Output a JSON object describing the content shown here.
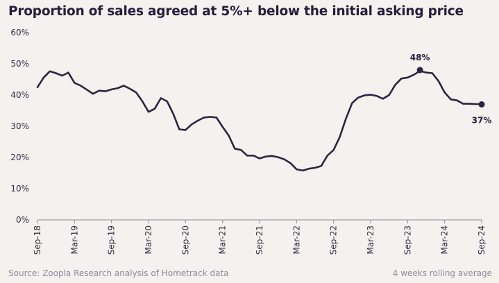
{
  "title": "Proportion of sales agreed at 5%+ below the initial asking price",
  "footer": {
    "source": "Source: Zoopla Research analysis of Hometrack data",
    "note": "4 weeks rolling average"
  },
  "colors": {
    "line": "#2b2440",
    "axis": "#8a8896",
    "background": "#f3f2ee"
  },
  "chart_data": {
    "type": "line",
    "title": "Proportion of sales agreed at 5%+ below the initial asking price",
    "xlabel": "",
    "ylabel": "",
    "ylim": [
      0,
      60
    ],
    "yticks": [
      "0%",
      "10%",
      "20%",
      "30%",
      "40%",
      "50%",
      "60%"
    ],
    "ytick_values": [
      0,
      10,
      20,
      30,
      40,
      50,
      60
    ],
    "xtick_labels": [
      "Sep-18",
      "Mar-19",
      "Sep-19",
      "Mar-20",
      "Sep-20",
      "Mar-21",
      "Sep-21",
      "Mar-22",
      "Sep-22",
      "Mar-23",
      "Sep-23",
      "Mar-24",
      "Sep-24"
    ],
    "grid": false,
    "series": [
      {
        "x": [
          "2018-09",
          "2018-10",
          "2018-11",
          "2018-12",
          "2019-01",
          "2019-02",
          "2019-03",
          "2019-04",
          "2019-05",
          "2019-06",
          "2019-07",
          "2019-08",
          "2019-09",
          "2019-10",
          "2019-11",
          "2019-12",
          "2020-01",
          "2020-02",
          "2020-03",
          "2020-04",
          "2020-05",
          "2020-06",
          "2020-07",
          "2020-08",
          "2020-09",
          "2020-10",
          "2020-11",
          "2020-12",
          "2021-01",
          "2021-02",
          "2021-03",
          "2021-04",
          "2021-05",
          "2021-06",
          "2021-07",
          "2021-08",
          "2021-09",
          "2021-10",
          "2021-11",
          "2021-12",
          "2022-01",
          "2022-02",
          "2022-03",
          "2022-04",
          "2022-05",
          "2022-06",
          "2022-07",
          "2022-08",
          "2022-09",
          "2022-10",
          "2022-11",
          "2022-12",
          "2023-01",
          "2023-02",
          "2023-03",
          "2023-04",
          "2023-05",
          "2023-06",
          "2023-07",
          "2023-08",
          "2023-09",
          "2023-10",
          "2023-11",
          "2023-12",
          "2024-01",
          "2024-02",
          "2024-03",
          "2024-04",
          "2024-05",
          "2024-06",
          "2024-07",
          "2024-08",
          "2024-09"
        ],
        "values": [
          42.5,
          45.6,
          47.6,
          47.0,
          46.2,
          47.2,
          43.9,
          43.0,
          41.7,
          40.4,
          41.4,
          41.2,
          41.8,
          42.2,
          43.0,
          42.0,
          40.8,
          38.0,
          34.6,
          35.6,
          39.0,
          38.0,
          34.0,
          29.0,
          28.8,
          30.6,
          31.8,
          32.8,
          33.0,
          32.8,
          29.8,
          27.0,
          22.8,
          22.4,
          20.6,
          20.6,
          19.7,
          20.3,
          20.5,
          20.1,
          19.4,
          18.2,
          16.2,
          15.8,
          16.4,
          16.7,
          17.3,
          20.6,
          22.4,
          26.6,
          32.4,
          37.4,
          39.2,
          39.9,
          40.1,
          39.7,
          38.8,
          40.0,
          43.3,
          45.3,
          45.6,
          46.5,
          47.7,
          47.2,
          47.0,
          44.5,
          40.8,
          38.6,
          38.3,
          37.2,
          37.2,
          37.1,
          37.0
        ]
      }
    ],
    "annotations": [
      {
        "x": "2023-11",
        "y": 48,
        "text": "48%"
      },
      {
        "x": "2024-09",
        "y": 37,
        "text": "37%"
      }
    ]
  }
}
